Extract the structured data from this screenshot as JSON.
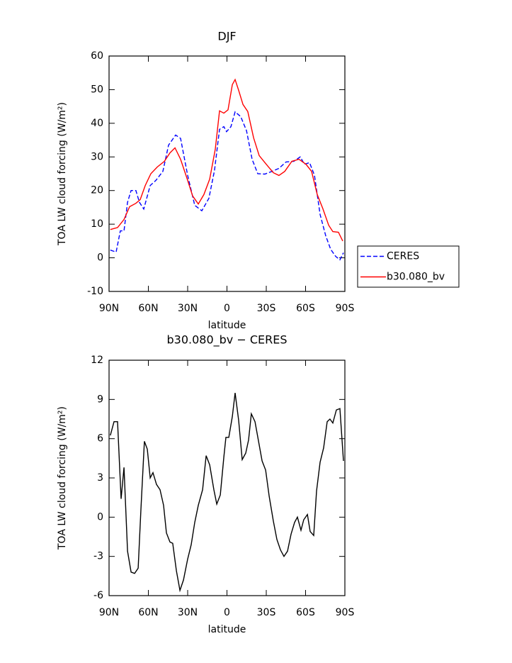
{
  "chart_data": [
    {
      "type": "line",
      "title": "DJF",
      "xlabel": "latitude",
      "ylabel": "TOA LW cloud forcing (W/m²)",
      "xlim": [
        90,
        -90
      ],
      "xticks": [
        {
          "value": 90,
          "label": "90N"
        },
        {
          "value": 60,
          "label": "60N"
        },
        {
          "value": 30,
          "label": "30N"
        },
        0,
        {
          "value": -30,
          "label": "30S"
        },
        {
          "value": -60,
          "label": "60S"
        },
        {
          "value": -90,
          "label": "90S"
        }
      ],
      "ylim": [
        -10,
        60
      ],
      "yticks": [
        -10,
        0,
        10,
        20,
        30,
        40,
        50,
        60
      ],
      "legend": "right",
      "series": [
        {
          "name": "CERES",
          "color": "#0000ff",
          "dash": true,
          "x": [
            89,
            84.6,
            81.4,
            78.6,
            75.9,
            73.2,
            69.5,
            66.8,
            63.5,
            58.6,
            54.3,
            48.9,
            44.6,
            39.2,
            35.4,
            30,
            24.6,
            19.2,
            13.8,
            9.5,
            5.7,
            2.4,
            0.3,
            -3,
            -6.2,
            -10.5,
            -14.9,
            -19.2,
            -23.5,
            -28.9,
            -34.3,
            -39.7,
            -45.1,
            -51.1,
            -55.9,
            -59.2,
            -63,
            -66.8,
            -71.1,
            -75.4,
            -79.2,
            -83,
            -86.2,
            -88.9
          ],
          "values": [
            2.3,
            1.7,
            8,
            8,
            16.5,
            20,
            20,
            16.5,
            14.5,
            21.5,
            23,
            25.7,
            33.5,
            36.5,
            35.5,
            24.5,
            15.6,
            14,
            17.7,
            26,
            38.2,
            39,
            37.5,
            39,
            43.4,
            42,
            37.8,
            29.3,
            25,
            24.9,
            25.7,
            26.6,
            28.5,
            28.7,
            30,
            27.8,
            28.3,
            24.5,
            12.9,
            6.5,
            2.5,
            0.4,
            -0.6,
            1.5
          ]
        },
        {
          "name": "b30.080_bv",
          "color": "#ff0000",
          "dash": false,
          "x": [
            89,
            83.5,
            78.6,
            74.3,
            69.5,
            66.2,
            62.4,
            58.1,
            53.2,
            47.8,
            43.5,
            39.7,
            35.4,
            30.5,
            26.2,
            21.9,
            17.6,
            13.2,
            8.9,
            5.7,
            2.4,
            -0.8,
            -4.1,
            -6.2,
            -8.9,
            -12.2,
            -15.9,
            -20.3,
            -24.6,
            -30,
            -35.4,
            -39.7,
            -44.1,
            -49.5,
            -54.9,
            -60.3,
            -64.6,
            -68.9,
            -73.2,
            -77.6,
            -80.8,
            -85.1,
            -88.4
          ],
          "values": [
            8.4,
            9,
            11.4,
            15.2,
            16.2,
            17.3,
            21.5,
            25,
            27,
            28.7,
            31.2,
            32.7,
            29.3,
            23.6,
            18.4,
            16,
            18.8,
            23.4,
            32.3,
            43.7,
            43,
            44,
            51.5,
            53,
            49.8,
            45.6,
            43.5,
            35.7,
            30.4,
            27.8,
            25.3,
            24.5,
            25.7,
            28.7,
            29.3,
            27.8,
            25.7,
            18.8,
            14.6,
            9.7,
            7.8,
            7.6,
            5
          ]
        }
      ]
    },
    {
      "type": "line",
      "title": "b30.080_bv − CERES",
      "xlabel": "latitude",
      "ylabel": "TOA LW cloud forcing (W/m²)",
      "xlim": [
        90,
        -90
      ],
      "xticks": [
        {
          "value": 90,
          "label": "90N"
        },
        {
          "value": 60,
          "label": "60N"
        },
        {
          "value": 30,
          "label": "30N"
        },
        0,
        {
          "value": -30,
          "label": "30S"
        },
        {
          "value": -60,
          "label": "60S"
        },
        {
          "value": -90,
          "label": "90S"
        }
      ],
      "ylim": [
        -6,
        12
      ],
      "yticks": [
        -6,
        -3,
        0,
        3,
        6,
        9,
        12
      ],
      "series": [
        {
          "color": "#000000",
          "dash": false,
          "x": [
            89,
            86.2,
            83.5,
            80.8,
            78.6,
            75.9,
            73.2,
            70.5,
            67.8,
            65.7,
            63,
            60.8,
            58.6,
            56.5,
            53.8,
            51.1,
            48.4,
            46.2,
            43.5,
            41.4,
            38.6,
            35.9,
            33.2,
            30,
            27.3,
            24.6,
            21.9,
            18.6,
            15.9,
            13.2,
            10,
            7.8,
            5.1,
            2.4,
            0.8,
            -1.4,
            -4.1,
            -6.2,
            -8.9,
            -11.6,
            -14.3,
            -16.5,
            -18.6,
            -21.4,
            -24.1,
            -26.8,
            -29.5,
            -32.2,
            -35.4,
            -38.1,
            -40.8,
            -43.5,
            -46.2,
            -48.9,
            -51.6,
            -53.8,
            -56.5,
            -58.6,
            -61.4,
            -63.5,
            -66.2,
            -68.4,
            -71.1,
            -73.8,
            -76.5,
            -78.6,
            -80.8,
            -83.5,
            -86.2,
            -88.9
          ],
          "values": [
            6.25,
            7.3,
            7.3,
            1.4,
            3.8,
            -2.6,
            -4.2,
            -4.3,
            -3.9,
            0.6,
            5.8,
            5.2,
            3,
            3.4,
            2.5,
            2.1,
            0.9,
            -1.2,
            -1.9,
            -2,
            -4.1,
            -5.6,
            -4.8,
            -3.2,
            -2.1,
            -0.4,
            0.9,
            2.1,
            4.7,
            4,
            2.1,
            1,
            1.7,
            4.6,
            6.1,
            6.1,
            7.7,
            9.5,
            7.4,
            4.4,
            4.9,
            5.9,
            7.9,
            7.3,
            5.8,
            4.3,
            3.6,
            1.6,
            -0.3,
            -1.7,
            -2.5,
            -3,
            -2.6,
            -1.3,
            -0.4,
            0,
            -1,
            -0.2,
            0.2,
            -1.1,
            -1.4,
            2,
            4.2,
            5.3,
            7.3,
            7.5,
            7.2,
            8.2,
            8.3,
            4.3
          ]
        }
      ]
    }
  ]
}
